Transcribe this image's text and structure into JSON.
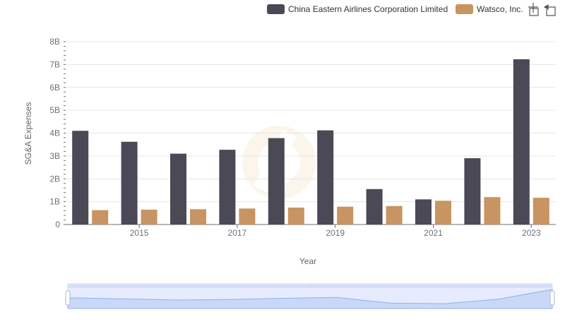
{
  "chart_data": {
    "type": "bar",
    "title": "",
    "xlabel": "Year",
    "ylabel": "SG&A Expenses",
    "ylim": [
      0,
      8000000000
    ],
    "yticks": [
      "0",
      "1B",
      "2B",
      "3B",
      "4B",
      "5B",
      "6B",
      "7B",
      "8B"
    ],
    "categories": [
      "2014",
      "2015",
      "2016",
      "2017",
      "2018",
      "2019",
      "2020",
      "2021",
      "2022",
      "2023"
    ],
    "xtick_labels": [
      "2015",
      "2017",
      "2019",
      "2021",
      "2023"
    ],
    "legend_position": "top-right",
    "grid": true,
    "series": [
      {
        "name": "China Eastern Airlines Corporation Limited",
        "color": "#4a4955",
        "values": [
          4100000000,
          3620000000,
          3100000000,
          3270000000,
          3780000000,
          4120000000,
          1550000000,
          1100000000,
          2900000000,
          7230000000
        ]
      },
      {
        "name": "Watsco, Inc.",
        "color": "#c89461",
        "values": [
          630000000,
          650000000,
          670000000,
          700000000,
          740000000,
          780000000,
          810000000,
          1040000000,
          1200000000,
          1170000000
        ]
      }
    ]
  },
  "toolbar": {
    "zoom_icon": "zoom-icon",
    "reset_icon": "reset-icon"
  },
  "datazoom": {
    "range_start": 0,
    "range_end": 1,
    "fill_color": "#d6e2fb"
  }
}
